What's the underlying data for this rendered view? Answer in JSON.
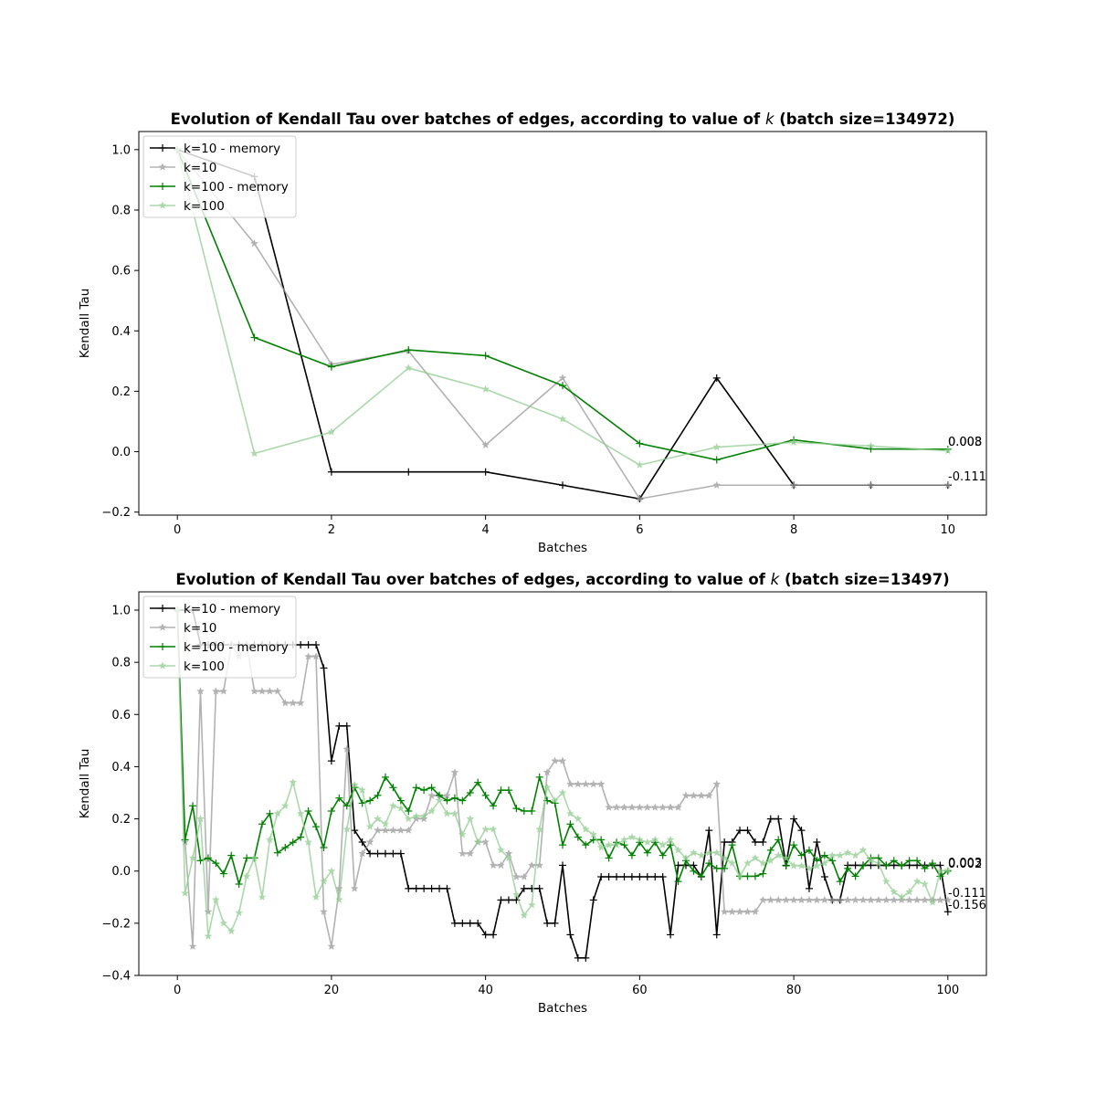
{
  "colors": {
    "k10_memory": "#000000",
    "k10": "#999999",
    "k100_memory": "#008000",
    "k100": "#90cc90"
  },
  "chart_data": [
    {
      "type": "line",
      "title": "Evolution of Kendall Tau over batches of edges, according to value of ",
      "title_k": "k",
      "title_tail": " (batch size=134972)",
      "xlabel": "Batches",
      "ylabel": "Kendall Tau",
      "xlim": [
        -0.5,
        10.5
      ],
      "ylim": [
        -0.21,
        1.06
      ],
      "xticks": [
        0,
        2,
        4,
        6,
        8,
        10
      ],
      "yticks": [
        -0.2,
        0.0,
        0.2,
        0.4,
        0.6,
        0.8,
        1.0
      ],
      "ytick_labels": [
        "−0.2",
        "0.0",
        "0.2",
        "0.4",
        "0.6",
        "0.8",
        "1.0"
      ],
      "legend_position": "upper-left",
      "end_labels": [
        "0.008",
        "0.003",
        "-0.111"
      ],
      "x": [
        0,
        1,
        2,
        3,
        4,
        5,
        6,
        7,
        8,
        9,
        10
      ],
      "series": [
        {
          "name": "k=10 - memory",
          "color_key": "k10_memory",
          "marker": "plus",
          "opacity": 1.0,
          "values": [
            1.0,
            0.911,
            -0.067,
            -0.067,
            -0.067,
            -0.111,
            -0.156,
            0.244,
            -0.111,
            -0.111,
            -0.111
          ]
        },
        {
          "name": "k=10",
          "color_key": "k10",
          "marker": "star",
          "opacity": 0.75,
          "values": [
            1.0,
            0.689,
            0.289,
            0.333,
            0.022,
            0.244,
            -0.156,
            -0.111,
            -0.111,
            -0.111,
            -0.111
          ]
        },
        {
          "name": "k=100 - memory",
          "color_key": "k100_memory",
          "marker": "plus",
          "opacity": 1.0,
          "values": [
            1.0,
            0.378,
            0.281,
            0.337,
            0.318,
            0.219,
            0.027,
            -0.027,
            0.039,
            0.009,
            0.008
          ]
        },
        {
          "name": "k=100",
          "color_key": "k100",
          "marker": "star",
          "opacity": 0.75,
          "values": [
            1.0,
            -0.006,
            0.065,
            0.277,
            0.207,
            0.108,
            -0.044,
            0.015,
            0.031,
            0.019,
            0.003
          ]
        }
      ]
    },
    {
      "type": "line",
      "title": "Evolution of Kendall Tau over batches of edges, according to value of ",
      "title_k": "k",
      "title_tail": " (batch size=13497)",
      "xlabel": "Batches",
      "ylabel": "Kendall Tau",
      "xlim": [
        -5,
        105
      ],
      "ylim": [
        -0.4,
        1.07
      ],
      "xticks": [
        0,
        20,
        40,
        60,
        80,
        100
      ],
      "yticks": [
        -0.4,
        -0.2,
        0.0,
        0.2,
        0.4,
        0.6,
        0.8,
        1.0
      ],
      "ytick_labels": [
        "−0.4",
        "−0.2",
        "0.0",
        "0.2",
        "0.4",
        "0.6",
        "0.8",
        "1.0"
      ],
      "legend_position": "upper-left",
      "end_labels": [
        "0.003",
        "0.002",
        "-0.111",
        "-0.156"
      ],
      "x_range": [
        0,
        100
      ],
      "series": [
        {
          "name": "k=10 - memory",
          "color_key": "k10_memory",
          "marker": "plus",
          "opacity": 1.0,
          "values": [
            1.0,
            1.0,
            1.0,
            0.867,
            0.867,
            0.867,
            0.867,
            0.867,
            0.867,
            0.867,
            0.867,
            0.867,
            0.867,
            0.867,
            0.867,
            0.867,
            0.867,
            0.867,
            0.867,
            0.778,
            0.422,
            0.556,
            0.556,
            0.156,
            0.111,
            0.067,
            0.067,
            0.067,
            0.067,
            0.067,
            -0.067,
            -0.067,
            -0.067,
            -0.067,
            -0.067,
            -0.067,
            -0.2,
            -0.2,
            -0.2,
            -0.2,
            -0.244,
            -0.244,
            -0.111,
            -0.111,
            -0.111,
            -0.067,
            -0.067,
            -0.067,
            -0.2,
            -0.2,
            0.022,
            -0.244,
            -0.333,
            -0.333,
            -0.111,
            -0.022,
            -0.022,
            -0.022,
            -0.022,
            -0.022,
            -0.022,
            -0.022,
            -0.022,
            -0.022,
            -0.244,
            0.022,
            0.022,
            0.022,
            -0.022,
            0.156,
            -0.244,
            0.111,
            0.111,
            0.156,
            0.156,
            0.111,
            0.111,
            0.2,
            0.2,
            0.022,
            0.2,
            0.156,
            -0.067,
            0.111,
            -0.022,
            -0.111,
            -0.111,
            0.022,
            0.022,
            0.022,
            0.022,
            0.022,
            0.022,
            0.022,
            0.022,
            0.022,
            0.022,
            0.022,
            0.022,
            0.022,
            -0.156
          ]
        },
        {
          "name": "k=10",
          "color_key": "k10",
          "marker": "star",
          "opacity": 0.75,
          "values": [
            1.0,
            0.111,
            -0.289,
            0.689,
            -0.156,
            0.689,
            0.689,
            0.867,
            0.822,
            0.867,
            0.689,
            0.689,
            0.689,
            0.689,
            0.644,
            0.644,
            0.644,
            0.822,
            0.822,
            -0.156,
            -0.289,
            -0.067,
            0.467,
            -0.067,
            0.067,
            0.111,
            0.156,
            0.156,
            0.156,
            0.156,
            0.156,
            0.2,
            0.2,
            0.289,
            0.289,
            0.289,
            0.378,
            0.067,
            0.067,
            0.111,
            0.111,
            0.022,
            0.022,
            0.067,
            -0.022,
            -0.022,
            0.022,
            0.022,
            0.378,
            0.422,
            0.422,
            0.333,
            0.333,
            0.333,
            0.333,
            0.333,
            0.244,
            0.244,
            0.244,
            0.244,
            0.244,
            0.244,
            0.244,
            0.244,
            0.244,
            0.244,
            0.289,
            0.289,
            0.289,
            0.289,
            0.333,
            -0.156,
            -0.156,
            -0.156,
            -0.156,
            -0.156,
            -0.111,
            -0.111,
            -0.111,
            -0.111,
            -0.111,
            -0.111,
            -0.111,
            -0.111,
            -0.111,
            -0.111,
            -0.111,
            -0.111,
            -0.111,
            -0.111,
            -0.111,
            -0.111,
            -0.111,
            -0.111,
            -0.111,
            -0.111,
            -0.111,
            -0.111,
            -0.111,
            -0.111,
            -0.111
          ]
        },
        {
          "name": "k=100 - memory",
          "color_key": "k100_memory",
          "marker": "plus",
          "opacity": 1.0,
          "values": [
            1.0,
            0.12,
            0.25,
            0.04,
            0.05,
            0.03,
            -0.01,
            0.06,
            -0.05,
            0.05,
            0.05,
            0.18,
            0.22,
            0.07,
            0.09,
            0.11,
            0.13,
            0.23,
            0.17,
            0.09,
            0.23,
            0.28,
            0.25,
            0.32,
            0.26,
            0.27,
            0.29,
            0.36,
            0.32,
            0.27,
            0.23,
            0.32,
            0.31,
            0.32,
            0.29,
            0.27,
            0.28,
            0.27,
            0.3,
            0.34,
            0.29,
            0.25,
            0.31,
            0.31,
            0.24,
            0.23,
            0.23,
            0.36,
            0.27,
            0.26,
            0.1,
            0.18,
            0.13,
            0.1,
            0.12,
            0.12,
            0.05,
            0.11,
            0.1,
            0.06,
            0.11,
            0.07,
            0.11,
            0.06,
            0.1,
            -0.04,
            0.04,
            0.0,
            -0.02,
            0.03,
            0.01,
            0.01,
            0.1,
            -0.02,
            -0.02,
            -0.02,
            -0.01,
            0.08,
            0.12,
            0.02,
            0.1,
            0.06,
            0.08,
            0.04,
            0.06,
            0.04,
            -0.04,
            0.01,
            -0.02,
            0.02,
            0.05,
            0.05,
            0.02,
            0.04,
            0.02,
            0.04,
            0.04,
            0.01,
            0.03,
            -0.02,
            0.0
          ]
        },
        {
          "name": "k=100",
          "color_key": "k100",
          "marker": "star",
          "opacity": 0.75,
          "values": [
            1.0,
            -0.085,
            0.05,
            0.2,
            -0.25,
            -0.11,
            -0.2,
            -0.23,
            -0.16,
            -0.02,
            0.05,
            -0.1,
            0.12,
            0.22,
            0.25,
            0.34,
            0.22,
            0.11,
            -0.1,
            -0.04,
            0.0,
            -0.11,
            0.16,
            0.33,
            0.31,
            0.17,
            0.2,
            0.18,
            0.25,
            0.24,
            0.2,
            0.21,
            0.21,
            0.23,
            0.27,
            0.22,
            0.22,
            0.14,
            0.2,
            0.11,
            0.16,
            0.16,
            0.08,
            0.05,
            -0.09,
            -0.17,
            -0.13,
            0.16,
            0.32,
            0.27,
            0.3,
            0.22,
            0.2,
            0.16,
            0.14,
            0.09,
            0.1,
            0.1,
            0.12,
            0.13,
            0.12,
            0.11,
            0.12,
            0.1,
            0.12,
            0.08,
            0.05,
            0.07,
            0.06,
            0.07,
            0.07,
            0.05,
            0.03,
            -0.02,
            0.03,
            0.05,
            0.03,
            0.04,
            0.06,
            0.05,
            0.02,
            0.02,
            0.01,
            0.02,
            0.03,
            0.06,
            0.06,
            0.07,
            0.06,
            0.08,
            0.04,
            0.03,
            -0.04,
            -0.08,
            -0.1,
            -0.08,
            -0.04,
            -0.05,
            -0.12,
            0.0,
            0.003
          ]
        }
      ]
    }
  ]
}
